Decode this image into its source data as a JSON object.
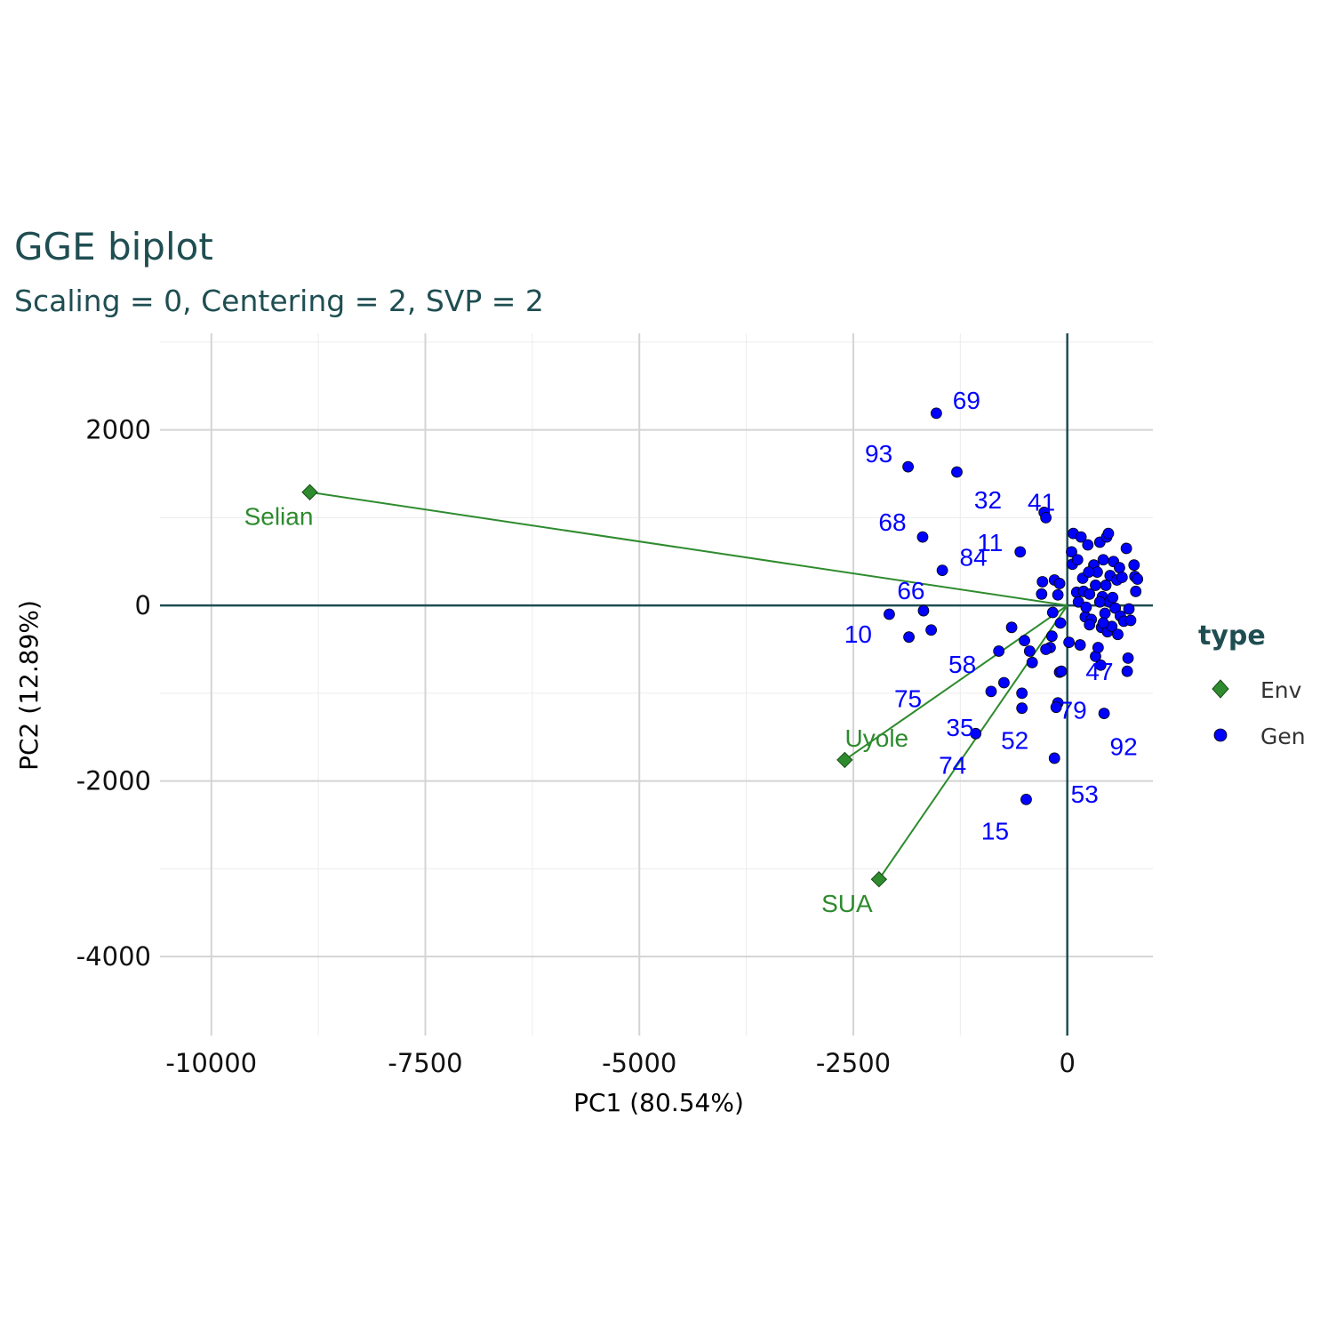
{
  "chart_data": {
    "type": "scatter",
    "title": "GGE biplot",
    "subtitle": "Scaling = 0, Centering = 2, SVP = 2",
    "xlabel": "PC1 (80.54%)",
    "ylabel": "PC2 (12.89%)",
    "xlim": [
      -10600,
      1000
    ],
    "ylim": [
      -4900,
      3100
    ],
    "x_ticks": [
      -10000,
      -7500,
      -5000,
      -2500,
      0
    ],
    "x_tick_labels": [
      "-10000",
      "-7500",
      "-5000",
      "-2500",
      "0"
    ],
    "y_ticks": [
      -4000,
      -2000,
      0,
      2000
    ],
    "y_tick_labels": [
      "-4000",
      "-2000",
      "0",
      "2000"
    ],
    "grid": true,
    "legend": {
      "title": "type",
      "placement": "right",
      "entries": [
        {
          "label": "Env",
          "color": "#2e8b2e",
          "shape": "diamond"
        },
        {
          "label": "Gen",
          "color": "#0000ff",
          "shape": "circle"
        }
      ]
    },
    "colors": {
      "env": "#2e8b2e",
      "gen": "#0000ff",
      "zero_line": "#1f4e52",
      "title": "#1f4e52"
    },
    "environments": [
      {
        "label": "Selian",
        "x": -8850,
        "y": 1290
      },
      {
        "label": "Uyole",
        "x": -2600,
        "y": -1760
      },
      {
        "label": "SUA",
        "x": -2200,
        "y": -3120
      }
    ],
    "labeled_genotypes": [
      {
        "label": "69",
        "x": -1530,
        "y": 2190
      },
      {
        "label": "93",
        "x": -1860,
        "y": 1580
      },
      {
        "label": "32",
        "x": -1290,
        "y": 1520
      },
      {
        "label": "41",
        "x": -250,
        "y": 1000
      },
      {
        "label": "68",
        "x": -1690,
        "y": 780
      },
      {
        "label": "11",
        "x": -550,
        "y": 610
      },
      {
        "label": "66",
        "x": -1680,
        "y": -60
      },
      {
        "label": "84",
        "x": -1460,
        "y": 400
      },
      {
        "label": "10",
        "x": -2080,
        "y": -100
      },
      {
        "label": "58",
        "x": -1590,
        "y": -280
      },
      {
        "label": "75",
        "x": -1850,
        "y": -360
      },
      {
        "label": "47",
        "x": -70,
        "y": -750
      },
      {
        "label": "35",
        "x": -890,
        "y": -980
      },
      {
        "label": "52",
        "x": -530,
        "y": -1170
      },
      {
        "label": "79",
        "x": -130,
        "y": -1160
      },
      {
        "label": "92",
        "x": 430,
        "y": -1230
      },
      {
        "label": "74",
        "x": -1070,
        "y": -1460
      },
      {
        "label": "53",
        "x": -150,
        "y": -1740
      },
      {
        "label": "15",
        "x": -480,
        "y": -2210
      }
    ],
    "other_genotypes": [
      {
        "x": -270,
        "y": 1060
      },
      {
        "x": -740,
        "y": -880
      },
      {
        "x": -650,
        "y": -250
      },
      {
        "x": -800,
        "y": -520
      },
      {
        "x": -530,
        "y": -1000
      },
      {
        "x": -440,
        "y": -520
      },
      {
        "x": -500,
        "y": -400
      },
      {
        "x": -300,
        "y": 130
      },
      {
        "x": -290,
        "y": 270
      },
      {
        "x": -410,
        "y": -650
      },
      {
        "x": -200,
        "y": -480
      },
      {
        "x": -170,
        "y": -80
      },
      {
        "x": -150,
        "y": 290
      },
      {
        "x": -110,
        "y": 120
      },
      {
        "x": -90,
        "y": 250
      },
      {
        "x": -80,
        "y": -200
      },
      {
        "x": -250,
        "y": -500
      },
      {
        "x": -180,
        "y": -350
      },
      {
        "x": -110,
        "y": -1110
      },
      {
        "x": -90,
        "y": -760
      },
      {
        "x": 20,
        "y": -420
      },
      {
        "x": 50,
        "y": 610
      },
      {
        "x": 60,
        "y": 470
      },
      {
        "x": 70,
        "y": 820
      },
      {
        "x": 110,
        "y": 150
      },
      {
        "x": 130,
        "y": 40
      },
      {
        "x": 150,
        "y": -450
      },
      {
        "x": 160,
        "y": 780
      },
      {
        "x": 180,
        "y": 310
      },
      {
        "x": 190,
        "y": 160
      },
      {
        "x": 210,
        "y": -130
      },
      {
        "x": 220,
        "y": -20
      },
      {
        "x": 240,
        "y": 690
      },
      {
        "x": 260,
        "y": 130
      },
      {
        "x": 280,
        "y": -160
      },
      {
        "x": 310,
        "y": 460
      },
      {
        "x": 330,
        "y": -580
      },
      {
        "x": 350,
        "y": 380
      },
      {
        "x": 360,
        "y": -480
      },
      {
        "x": 380,
        "y": 720
      },
      {
        "x": 390,
        "y": -680
      },
      {
        "x": 400,
        "y": -250
      },
      {
        "x": 410,
        "y": 100
      },
      {
        "x": 420,
        "y": 520
      },
      {
        "x": 440,
        "y": -90
      },
      {
        "x": 450,
        "y": 230
      },
      {
        "x": 460,
        "y": 780
      },
      {
        "x": 470,
        "y": -300
      },
      {
        "x": 480,
        "y": 820
      },
      {
        "x": 490,
        "y": 40
      },
      {
        "x": 500,
        "y": 340
      },
      {
        "x": 520,
        "y": -240
      },
      {
        "x": 530,
        "y": 90
      },
      {
        "x": 540,
        "y": 500
      },
      {
        "x": 560,
        "y": -30
      },
      {
        "x": 580,
        "y": 290
      },
      {
        "x": 590,
        "y": -330
      },
      {
        "x": 610,
        "y": 430
      },
      {
        "x": 620,
        "y": -120
      },
      {
        "x": 640,
        "y": 320
      },
      {
        "x": 660,
        "y": -180
      },
      {
        "x": 690,
        "y": 650
      },
      {
        "x": 700,
        "y": -750
      },
      {
        "x": 710,
        "y": -600
      },
      {
        "x": 720,
        "y": -40
      },
      {
        "x": 740,
        "y": -170
      },
      {
        "x": 780,
        "y": 460
      },
      {
        "x": 790,
        "y": 330
      },
      {
        "x": 800,
        "y": 160
      },
      {
        "x": 820,
        "y": 300
      },
      {
        "x": 380,
        "y": 40
      },
      {
        "x": 260,
        "y": -220
      },
      {
        "x": 120,
        "y": 520
      },
      {
        "x": 330,
        "y": 230
      },
      {
        "x": 250,
        "y": 380
      },
      {
        "x": 420,
        "y": -200
      }
    ]
  }
}
